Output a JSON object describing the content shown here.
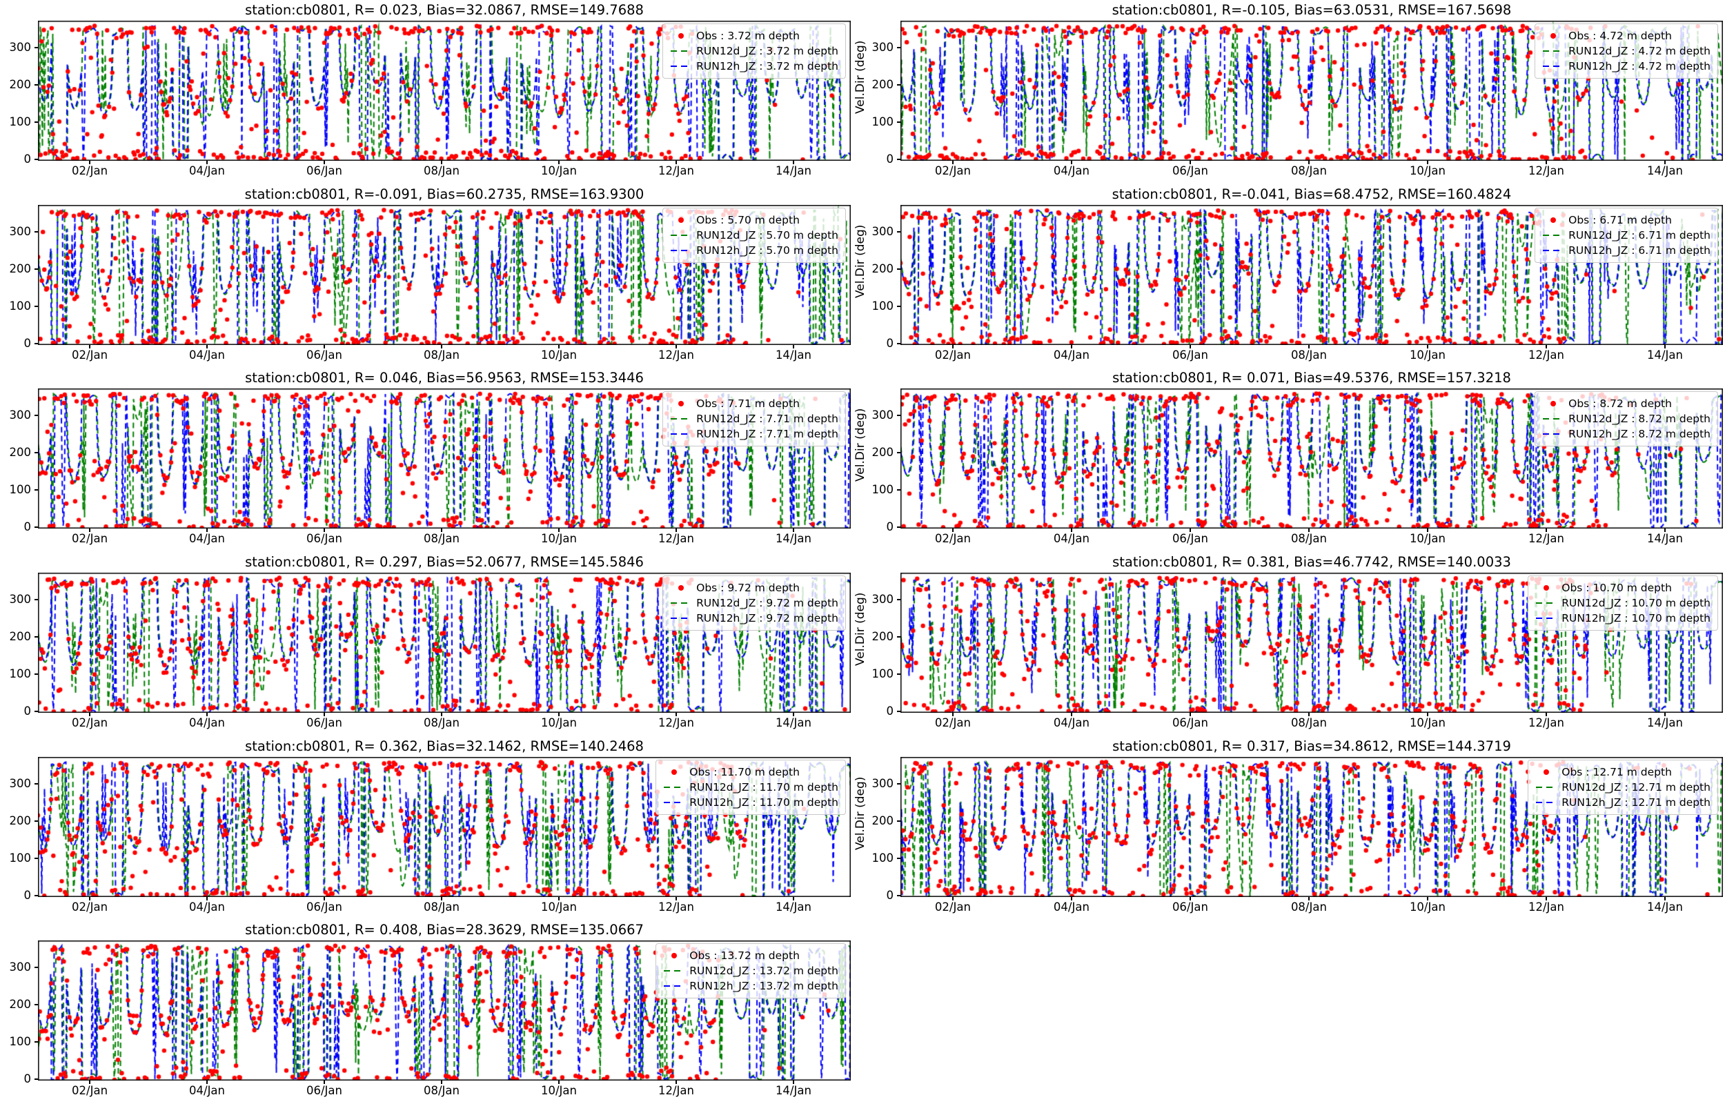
{
  "figure": {
    "station_id": "cb0801",
    "background": "#ffffff",
    "colors": {
      "obs": "#ff0000",
      "run12d_jz": "#008000",
      "run12h_jz": "#0000ff",
      "axis": "#000000",
      "legend_border": "#c8c8c8",
      "legend_bg": "rgba(255,255,255,0.8)"
    }
  },
  "axes": {
    "ylabel": "Vel.Dir (deg)",
    "y_tick_labels": [
      "0",
      "100",
      "200",
      "300"
    ],
    "x_tick_labels": [
      "02/Jan",
      "04/Jan",
      "06/Jan",
      "08/Jan",
      "10/Jan",
      "12/Jan",
      "14/Jan"
    ]
  },
  "chart_data": {
    "type": "line+scatter",
    "n_rows": 6,
    "n_cols": 2,
    "x_tick_labels": [
      "02/Jan",
      "04/Jan",
      "06/Jan",
      "08/Jan",
      "10/Jan",
      "12/Jan",
      "14/Jan"
    ],
    "y_tick_labels": [
      "0",
      "100",
      "200",
      "300"
    ],
    "ylabel_right_column": "Vel.Dir (deg)",
    "y_range_deg": [
      0,
      360
    ],
    "legend_position": "upper right",
    "series_styles": {
      "obs": {
        "type": "scatter",
        "marker": "dot",
        "color": "#ff0000"
      },
      "run12d_jz": {
        "type": "line",
        "linestyle": "dashed",
        "color": "#008000"
      },
      "run12h_jz": {
        "type": "line",
        "linestyle": "dashed",
        "color": "#0000ff"
      }
    },
    "subplots": [
      {
        "title": "station:cb0801, R= 0.023, Bias=32.0867, RMSE=149.7688",
        "depth_m": 3.72,
        "stats": {
          "R": 0.023,
          "Bias": 32.0867,
          "RMSE": 149.7688
        },
        "series": [
          {
            "name": "Obs : 3.72 m depth",
            "type": "scatter",
            "color": "#ff0000"
          },
          {
            "name": "RUN12d_JZ : 3.72 m depth",
            "type": "line",
            "linestyle": "dashed",
            "color": "#008000"
          },
          {
            "name": "RUN12h_JZ : 3.72 m depth",
            "type": "line",
            "linestyle": "dashed",
            "color": "#0000ff"
          }
        ]
      },
      {
        "title": "station:cb0801, R=-0.105, Bias=63.0531, RMSE=167.5698",
        "depth_m": 4.72,
        "stats": {
          "R": -0.105,
          "Bias": 63.0531,
          "RMSE": 167.5698
        },
        "series": [
          {
            "name": "Obs : 4.72 m depth",
            "type": "scatter",
            "color": "#ff0000"
          },
          {
            "name": "RUN12d_JZ : 4.72 m depth",
            "type": "line",
            "linestyle": "dashed",
            "color": "#008000"
          },
          {
            "name": "RUN12h_JZ : 4.72 m depth",
            "type": "line",
            "linestyle": "dashed",
            "color": "#0000ff"
          }
        ]
      },
      {
        "title": "station:cb0801, R=-0.091, Bias=60.2735, RMSE=163.9300",
        "depth_m": 5.7,
        "stats": {
          "R": -0.091,
          "Bias": 60.2735,
          "RMSE": 163.93
        },
        "series": [
          {
            "name": "Obs : 5.70 m depth",
            "type": "scatter",
            "color": "#ff0000"
          },
          {
            "name": "RUN12d_JZ : 5.70 m depth",
            "type": "line",
            "linestyle": "dashed",
            "color": "#008000"
          },
          {
            "name": "RUN12h_JZ : 5.70 m depth",
            "type": "line",
            "linestyle": "dashed",
            "color": "#0000ff"
          }
        ]
      },
      {
        "title": "station:cb0801, R=-0.041, Bias=68.4752, RMSE=160.4824",
        "depth_m": 6.71,
        "stats": {
          "R": -0.041,
          "Bias": 68.4752,
          "RMSE": 160.4824
        },
        "series": [
          {
            "name": "Obs : 6.71 m depth",
            "type": "scatter",
            "color": "#ff0000"
          },
          {
            "name": "RUN12d_JZ : 6.71 m depth",
            "type": "line",
            "linestyle": "dashed",
            "color": "#008000"
          },
          {
            "name": "RUN12h_JZ : 6.71 m depth",
            "type": "line",
            "linestyle": "dashed",
            "color": "#0000ff"
          }
        ]
      },
      {
        "title": "station:cb0801, R= 0.046, Bias=56.9563, RMSE=153.3446",
        "depth_m": 7.71,
        "stats": {
          "R": 0.046,
          "Bias": 56.9563,
          "RMSE": 153.3446
        },
        "series": [
          {
            "name": "Obs : 7.71 m depth",
            "type": "scatter",
            "color": "#ff0000"
          },
          {
            "name": "RUN12d_JZ : 7.71 m depth",
            "type": "line",
            "linestyle": "dashed",
            "color": "#008000"
          },
          {
            "name": "RUN12h_JZ : 7.71 m depth",
            "type": "line",
            "linestyle": "dashed",
            "color": "#0000ff"
          }
        ]
      },
      {
        "title": "station:cb0801, R= 0.071, Bias=49.5376, RMSE=157.3218",
        "depth_m": 8.72,
        "stats": {
          "R": 0.071,
          "Bias": 49.5376,
          "RMSE": 157.3218
        },
        "series": [
          {
            "name": "Obs : 8.72 m depth",
            "type": "scatter",
            "color": "#ff0000"
          },
          {
            "name": "RUN12d_JZ : 8.72 m depth",
            "type": "line",
            "linestyle": "dashed",
            "color": "#008000"
          },
          {
            "name": "RUN12h_JZ : 8.72 m depth",
            "type": "line",
            "linestyle": "dashed",
            "color": "#0000ff"
          }
        ]
      },
      {
        "title": "station:cb0801, R= 0.297, Bias=52.0677, RMSE=145.5846",
        "depth_m": 9.72,
        "stats": {
          "R": 0.297,
          "Bias": 52.0677,
          "RMSE": 145.5846
        },
        "series": [
          {
            "name": "Obs : 9.72 m depth",
            "type": "scatter",
            "color": "#ff0000"
          },
          {
            "name": "RUN12d_JZ : 9.72 m depth",
            "type": "line",
            "linestyle": "dashed",
            "color": "#008000"
          },
          {
            "name": "RUN12h_JZ : 9.72 m depth",
            "type": "line",
            "linestyle": "dashed",
            "color": "#0000ff"
          }
        ]
      },
      {
        "title": "station:cb0801, R= 0.381, Bias=46.7742, RMSE=140.0033",
        "depth_m": 10.7,
        "stats": {
          "R": 0.381,
          "Bias": 46.7742,
          "RMSE": 140.0033
        },
        "series": [
          {
            "name": "Obs : 10.70 m depth",
            "type": "scatter",
            "color": "#ff0000"
          },
          {
            "name": "RUN12d_JZ : 10.70 m depth",
            "type": "line",
            "linestyle": "dashed",
            "color": "#008000"
          },
          {
            "name": "RUN12h_JZ : 10.70 m depth",
            "type": "line",
            "linestyle": "dashed",
            "color": "#0000ff"
          }
        ]
      },
      {
        "title": "station:cb0801, R= 0.362, Bias=32.1462, RMSE=140.2468",
        "depth_m": 11.7,
        "stats": {
          "R": 0.362,
          "Bias": 32.1462,
          "RMSE": 140.2468
        },
        "series": [
          {
            "name": "Obs : 11.70 m depth",
            "type": "scatter",
            "color": "#ff0000"
          },
          {
            "name": "RUN12d_JZ : 11.70 m depth",
            "type": "line",
            "linestyle": "dashed",
            "color": "#008000"
          },
          {
            "name": "RUN12h_JZ : 11.70 m depth",
            "type": "line",
            "linestyle": "dashed",
            "color": "#0000ff"
          }
        ]
      },
      {
        "title": "station:cb0801, R= 0.317, Bias=34.8612, RMSE=144.3719",
        "depth_m": 12.71,
        "stats": {
          "R": 0.317,
          "Bias": 34.8612,
          "RMSE": 144.3719
        },
        "series": [
          {
            "name": "Obs : 12.71 m depth",
            "type": "scatter",
            "color": "#ff0000"
          },
          {
            "name": "RUN12d_JZ : 12.71 m depth",
            "type": "line",
            "linestyle": "dashed",
            "color": "#008000"
          },
          {
            "name": "RUN12h_JZ : 12.71 m depth",
            "type": "line",
            "linestyle": "dashed",
            "color": "#0000ff"
          }
        ]
      },
      {
        "title": "station:cb0801, R= 0.408, Bias=28.3629, RMSE=135.0667",
        "depth_m": 13.72,
        "stats": {
          "R": 0.408,
          "Bias": 28.3629,
          "RMSE": 135.0667
        },
        "series": [
          {
            "name": "Obs : 13.72 m depth",
            "type": "scatter",
            "color": "#ff0000"
          },
          {
            "name": "RUN12d_JZ : 13.72 m depth",
            "type": "line",
            "linestyle": "dashed",
            "color": "#008000"
          },
          {
            "name": "RUN12h_JZ : 13.72 m depth",
            "type": "line",
            "linestyle": "dashed",
            "color": "#0000ff"
          }
        ]
      }
    ]
  }
}
